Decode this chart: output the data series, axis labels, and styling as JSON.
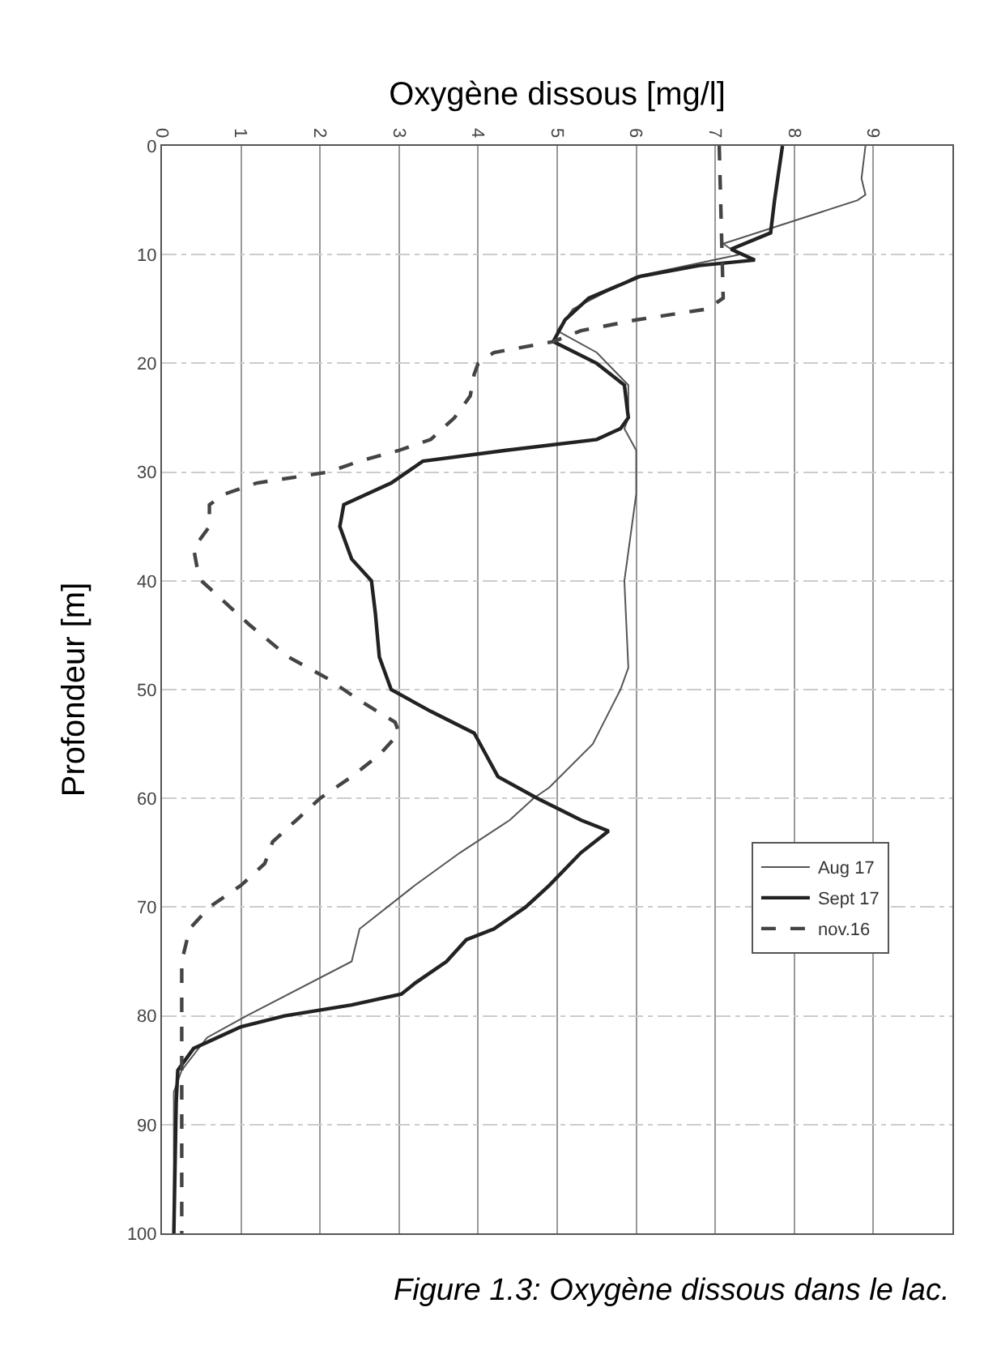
{
  "chart_data": {
    "type": "line",
    "xlabel": "Oxygène dissous [mg/l]",
    "ylabel": "Profondeur [m]",
    "xlim": [
      0,
      10
    ],
    "xticks": [
      0,
      1,
      2,
      3,
      4,
      5,
      6,
      7,
      8,
      9
    ],
    "ylim": [
      100,
      0
    ],
    "yticks": [
      0,
      10,
      20,
      30,
      40,
      50,
      60,
      70,
      80,
      90,
      100
    ],
    "grid": true,
    "legend": "right",
    "line_style": "solid",
    "marker": "none",
    "annotations": [
      "Figure 1.3: Oxygène dissous dans le lac."
    ],
    "series": [
      {
        "name": "Aug 17",
        "color": "#555555",
        "x": [
          8.9,
          8.85,
          8.9,
          8.8,
          7.1,
          7.3,
          6.0,
          5.2,
          5.0,
          5.5,
          5.9,
          5.9,
          5.85,
          6.0,
          6.0,
          5.85,
          5.9,
          5.8,
          5.45,
          4.9,
          4.7,
          4.4,
          3.77,
          3.2,
          2.5,
          2.4,
          1.07,
          0.57,
          0.25,
          0.15,
          0.15
        ],
        "values": [
          0,
          3,
          4.5,
          5,
          9,
          10,
          12,
          15,
          17,
          19,
          22,
          25,
          26,
          28,
          32,
          40,
          48,
          50,
          55,
          59,
          60,
          62,
          65,
          68,
          72,
          75,
          80,
          82,
          85,
          87,
          100
        ]
      },
      {
        "name": "Sept 17",
        "color": "#222222",
        "x": [
          7.85,
          7.75,
          7.7,
          7.2,
          7.5,
          6.8,
          6.05,
          5.4,
          5.1,
          4.95,
          5.5,
          5.85,
          5.9,
          5.8,
          5.5,
          4.35,
          3.3,
          2.9,
          2.3,
          2.25,
          2.4,
          2.65,
          2.7,
          2.75,
          2.9,
          3.4,
          3.95,
          4.1,
          4.25,
          4.75,
          5.3,
          5.65,
          5.3,
          4.9,
          4.6,
          4.2,
          3.85,
          3.6,
          3.2,
          3.03,
          2.4,
          1.55,
          1.0,
          0.4,
          0.2,
          0.18,
          0.15
        ],
        "values": [
          0,
          5,
          8,
          9.5,
          10.5,
          11,
          12,
          14,
          16,
          18,
          20,
          22,
          25,
          26,
          27,
          28,
          29,
          31,
          33,
          35,
          38,
          40,
          43,
          47,
          50,
          52,
          54,
          56,
          58,
          60,
          62,
          63,
          65,
          68,
          70,
          72,
          73,
          75,
          77,
          78,
          79,
          80,
          81,
          83,
          85,
          88,
          100
        ]
      },
      {
        "name": "nov.16",
        "color": "#444444",
        "line_style": "dashed",
        "x": [
          7.05,
          7.1,
          6.9,
          6.0,
          5.3,
          4.95,
          4.2,
          4.0,
          3.95,
          3.9,
          3.7,
          3.4,
          3.0,
          2.5,
          2.1,
          1.2,
          0.8,
          0.6,
          0.6,
          0.4,
          0.45,
          0.5,
          0.8,
          1.1,
          1.6,
          2.1,
          2.5,
          2.95,
          3.0,
          2.75,
          2.4,
          2.0,
          1.7,
          1.4,
          1.3,
          1.0,
          0.6,
          0.35,
          0.25,
          0.25,
          0.25,
          0.25,
          0.25
        ],
        "values": [
          0,
          14,
          15,
          16,
          17,
          18,
          19,
          20,
          21,
          23,
          25,
          27,
          28,
          29,
          30,
          31,
          32,
          33,
          35,
          37,
          39,
          40,
          42,
          44,
          47,
          49,
          51,
          53,
          54,
          56,
          58,
          60,
          62,
          64,
          66,
          68,
          70,
          72,
          75,
          80,
          85,
          90,
          100
        ]
      }
    ]
  }
}
